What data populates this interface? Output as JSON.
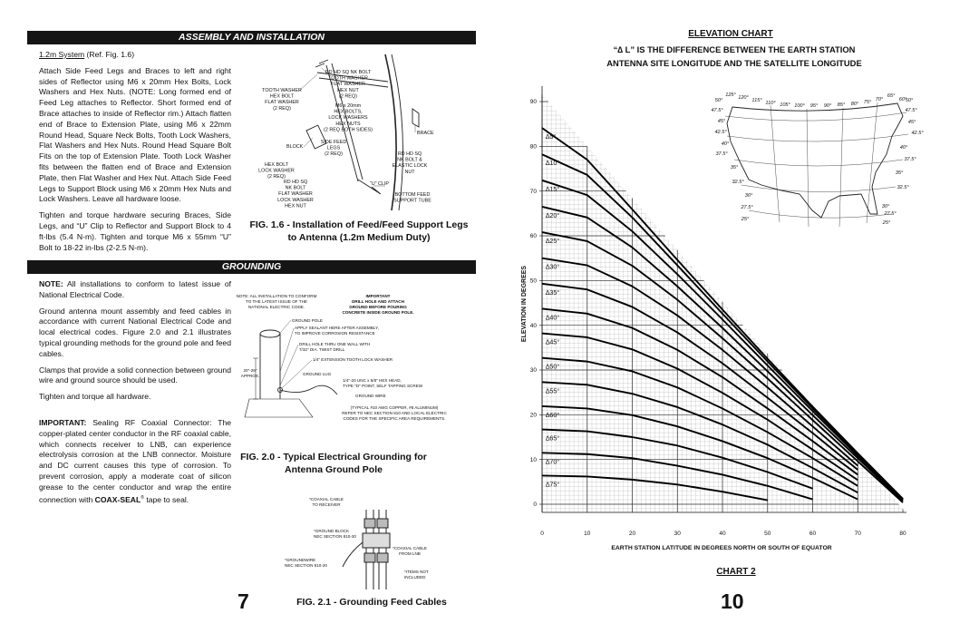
{
  "left_page": {
    "section_1": {
      "heading": "ASSEMBLY AND INSTALLATION",
      "system": "1.2m System",
      "ref": "(Ref. Fig. 1.6)",
      "paragraphs": [
        "Attach Side Feed Legs and Braces to left and right sides of Reflector using M6 x 20mm Hex Bolts, Lock Washers and Hex Nuts. (NOTE: Long formed end of Feed Leg attaches to Reflector. Short formed end of Brace attaches to inside of Reflector rim.) Attach flatten end of Brace to Extension Plate, using M6 x 22mm Round Head, Square Neck Bolts, Tooth Lock Washers, Flat Washers and Hex Nuts. Round Head Square Bolt Fits on the top of Extension Plate. Tooth Lock Washer fits between the flatten end of Brace and Extension Plate, then Flat Washer and Hex Nut. Attach Side Feed Legs to Support Block using M6 x 20mm Hex Nuts and Lock Washers. Leave all hardware loose.",
        "Tighten and torque hardware securing Braces, Side Legs, and “U” Clip to Reflector and Support Block to 4 ft-lbs (5.4 N-m). Tighten and torque M6 x 55mm “U” Bolt to 18-22 in-lbs (2-2.5 N-m)."
      ]
    },
    "fig_1_6": {
      "labels": [
        [
          "RD HD SQ NK BOLT",
          "TOOTH WASHER",
          "FLAT WASHER",
          "HEX NUT",
          "(2 REQ)"
        ],
        [
          "TOOTH WASHER",
          "HEX BOLT",
          "FLAT WASHER",
          "(2 REQ)"
        ],
        [
          "M6 x 20mm",
          "HEX BOLTS,",
          "LOCK WASHERS",
          "HEX NUTS",
          "(2 REQ BOTH SIDES)"
        ],
        [
          "BRACE"
        ],
        [
          "BLOCK"
        ],
        [
          "SIDE FEED",
          "LEGS",
          "(2 REQ)"
        ],
        [
          "RD HD SQ",
          "NK BOLT &",
          "ELASTIC LOCK",
          "NUT"
        ],
        [
          "HEX BOLT",
          "LOCK WASHER",
          "(2 REQ)"
        ],
        [
          "RD HD SQ",
          "NK BOLT",
          "FLAT WASHER",
          "LOCK WASHER",
          "HEX NUT"
        ],
        [
          "“U” CLIP"
        ],
        [
          "BOTTOM FEED",
          "SUPPORT TUBE"
        ]
      ],
      "caption": [
        "FIG. 1.6 - Installation of Feed/Feed Support Legs",
        "to Antenna (1.2m Medium Duty)"
      ]
    },
    "section_2": {
      "heading": "GROUNDING",
      "note_label": "NOTE:",
      "note": "All installations to conform to latest issue of National Electrical Code.",
      "paragraphs": [
        "Ground antenna mount assembly and feed cables in accordance with current National Electrical Code and local electrical codes. Figure 2.0 and 2.1 illustrates typical grounding methods for the ground pole and feed cables.",
        "Clamps that provide a solid connection between ground wire and ground source should be used.",
        "Tighten and torque all hardware."
      ],
      "important_label": "IMPORTANT:",
      "important": "Sealing RF Coaxial Connector: The copper-plated center conductor in the RF coaxial cable, which connects receiver to LNB, can experience electrolysis corrosion at the LNB connector. Moisture and DC current causes this type of corrosion. To prevent corrosion, apply a moderate coat of silicon grease to the center conductor and wrap the entire connection with",
      "product": "COAX-SEAL",
      "trademark": "®",
      "tail": "tape to seal."
    },
    "fig_2_0": {
      "labels": [
        [
          "NOTE: ALL INSTALLATION TO CONFORM",
          "TO THE LATEST ISSUE OF THE",
          "NATIONAL ELECTRIC CODE."
        ],
        [
          "IMPORTANT",
          "DRILL HOLE AND ATTACH",
          "GROUND BEFORE POURING",
          "CONCRETE INSIDE GROUND POLE."
        ],
        [
          "GROUND POLE"
        ],
        [
          "APPLY SEALANT HERE AFTER ASSEMBLY,",
          "TO IMPROVE CORROSION RESISTANCE"
        ],
        [
          "DRILL HOLE THRU ONE WALL WITH",
          "7/32\" DIA. TWIST DRILL"
        ],
        [
          "1/4\" EXTENSION TOOTH LOCK WASHER"
        ],
        [
          "20\"-26\"",
          "APPROX."
        ],
        [
          "GROUND LUG"
        ],
        [
          "1/4\"-20 UNC x 5/8\" HEX HEAD,",
          "TYPE \"D\" POINT, SELF TAPPING SCREW"
        ],
        [
          "GROUND WIRE"
        ],
        [
          "(TYPICAL #10 AWG COPPER, #8 ALUMINUM)",
          "REFER TO NEC SECTION 810 AND LOCAL ELECTRIC",
          "CODES FOR THE SPECIFIC AREA REQUIREMENTS."
        ]
      ],
      "caption": [
        "FIG. 2.0 - Typical Electrical Grounding for",
        "Antenna Ground Pole"
      ]
    },
    "fig_2_1": {
      "labels": [
        [
          "*COAXIAL CABLE",
          "TO RECEIVER"
        ],
        [
          "*GROUND BLOCK",
          "NEC SECTION 810-20"
        ],
        [
          "*COAXIAL CABLE",
          "FROM LNB"
        ],
        [
          "*GROUNDWIRE",
          "NEC SECTION 810-20"
        ],
        [
          "*ITEMS NOT",
          "INCLUDED"
        ]
      ],
      "caption": [
        "FIG. 2.1 - Grounding Feed Cables"
      ]
    },
    "page_number": "7"
  },
  "chart_data": {
    "type": "line",
    "title": "ELEVATION CHART",
    "subtitle": [
      "“∆ L” IS THE DIFFERENCE BETWEEN THE EARTH STATION",
      "ANTENNA SITE LONGITUDE AND THE SATELLITE LONGITUDE"
    ],
    "x_label": "EARTH STATION LATITUDE IN DEGREES NORTH OR SOUTH OF EQUATOR",
    "y_label": "ELEVATION IN DEGREES",
    "caption": "CHART 2",
    "x": [
      0,
      10,
      20,
      30,
      40,
      50,
      60,
      70,
      80
    ],
    "xlim": [
      0,
      80
    ],
    "ylim": [
      0,
      90
    ],
    "xticks": [
      0,
      10,
      20,
      30,
      40,
      50,
      60,
      70,
      80
    ],
    "yticks": [
      0,
      10,
      20,
      30,
      40,
      50,
      60,
      70,
      80,
      90
    ],
    "grid": true,
    "series": [
      {
        "name": "∆5°",
        "color": "#000000",
        "values": [
          84.1,
          77.0,
          65.9,
          54.6,
          43.5,
          32.5,
          21.8,
          11.4,
          1.2
        ]
      },
      {
        "name": "∆10°",
        "color": "#000000",
        "values": [
          78.2,
          73.6,
          64.1,
          53.4,
          42.6,
          31.9,
          21.4,
          11.2,
          1.1
        ]
      },
      {
        "name": "∆15°",
        "color": "#000000",
        "values": [
          72.4,
          69.1,
          61.0,
          51.4,
          41.3,
          31.0,
          20.8,
          10.8,
          0.9
        ]
      },
      {
        "name": "∆20°",
        "color": "#000000",
        "values": [
          66.5,
          64.1,
          57.4,
          48.7,
          39.4,
          29.7,
          19.9,
          10.3,
          0.7
        ]
      },
      {
        "name": "∆25°",
        "color": "#000000",
        "values": [
          60.8,
          58.8,
          53.3,
          45.7,
          37.1,
          28.1,
          18.8,
          9.6,
          0.4
        ]
      },
      {
        "name": "∆30°",
        "color": "#000000",
        "values": [
          55.0,
          53.4,
          48.7,
          42.2,
          34.5,
          26.1,
          17.4,
          8.6,
          null
        ]
      },
      {
        "name": "∆35°",
        "color": "#000000",
        "values": [
          49.3,
          48.0,
          44.1,
          38.4,
          31.5,
          23.8,
          15.9,
          7.7,
          null
        ]
      },
      {
        "name": "∆40°",
        "color": "#000000",
        "values": [
          43.7,
          42.6,
          39.4,
          34.5,
          28.4,
          21.4,
          14.1,
          6.6,
          null
        ]
      },
      {
        "name": "∆45°",
        "color": "#000000",
        "values": [
          38.2,
          37.3,
          34.6,
          30.3,
          24.9,
          18.9,
          12.2,
          5.4,
          null
        ]
      },
      {
        "name": "∆50°",
        "color": "#000000",
        "values": [
          32.7,
          31.9,
          29.7,
          26.1,
          21.4,
          16.1,
          10.3,
          4.1,
          null
        ]
      },
      {
        "name": "∆55°",
        "color": "#000000",
        "values": [
          27.3,
          26.7,
          24.7,
          21.7,
          17.8,
          13.3,
          8.1,
          2.6,
          null
        ]
      },
      {
        "name": "∆60°",
        "color": "#000000",
        "values": [
          21.9,
          21.4,
          19.9,
          17.4,
          14.1,
          10.3,
          5.9,
          1.1,
          null
        ]
      },
      {
        "name": "∆65°",
        "color": "#000000",
        "values": [
          16.7,
          16.3,
          15.0,
          13.1,
          10.4,
          7.2,
          3.5,
          null,
          null
        ]
      },
      {
        "name": "∆70°",
        "color": "#000000",
        "values": [
          11.5,
          11.2,
          10.3,
          8.6,
          6.6,
          4.1,
          1.1,
          null,
          null
        ]
      },
      {
        "name": "∆75°",
        "color": "#000000",
        "values": [
          6.4,
          6.2,
          5.5,
          4.4,
          2.8,
          0.9,
          null,
          null,
          null
        ]
      }
    ]
  },
  "right_page": {
    "map": {
      "longitudes": [
        "125°",
        "120°",
        "115°",
        "110°",
        "105°",
        "100°",
        "95°",
        "90°",
        "85°",
        "80°",
        "75°",
        "70°",
        "65°",
        "60°"
      ],
      "lat_left": [
        "50°",
        "47.5°",
        "45°",
        "42.5°",
        "40°",
        "37.5°",
        "35°",
        "32.5°",
        "30°",
        "27.5°",
        "25°"
      ],
      "lat_right": [
        "50°",
        "47.5°",
        "45°",
        "42.5°",
        "40°",
        "37.5°",
        "35°",
        "32.5°",
        "30°",
        "27.5°",
        "25°"
      ]
    },
    "page_number": "10"
  }
}
